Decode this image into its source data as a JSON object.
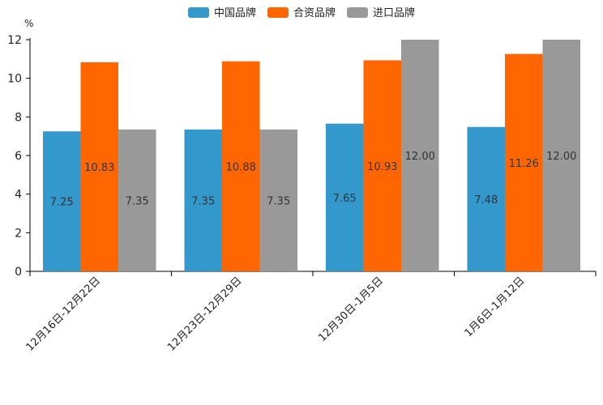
{
  "chart_data": {
    "type": "bar",
    "title": "",
    "xlabel": "",
    "ylabel": "",
    "unit": "%",
    "ylim": [
      0,
      12
    ],
    "yticks": [
      0,
      2,
      4,
      6,
      8,
      10,
      12
    ],
    "grid": false,
    "legend_position": "top-center",
    "categories": [
      "12月16日-12月22日",
      "12月23日-12月29日",
      "12月30日-1月5日",
      "1月6日-1月12日"
    ],
    "series": [
      {
        "name": "中国品牌",
        "color": "#3399cc",
        "values": [
          7.25,
          7.35,
          7.65,
          7.48
        ],
        "labels": [
          "7.25",
          "7.35",
          "7.65",
          "7.48"
        ]
      },
      {
        "name": "合资品牌",
        "color": "#ff6600",
        "values": [
          10.83,
          10.88,
          10.93,
          11.26
        ],
        "labels": [
          "10.83",
          "10.88",
          "10.93",
          "11.26"
        ]
      },
      {
        "name": "进口品牌",
        "color": "#999999",
        "values": [
          7.35,
          7.35,
          12.0,
          12.0
        ],
        "labels": [
          "7.35",
          "7.35",
          "12.00",
          "12.00"
        ]
      }
    ]
  }
}
